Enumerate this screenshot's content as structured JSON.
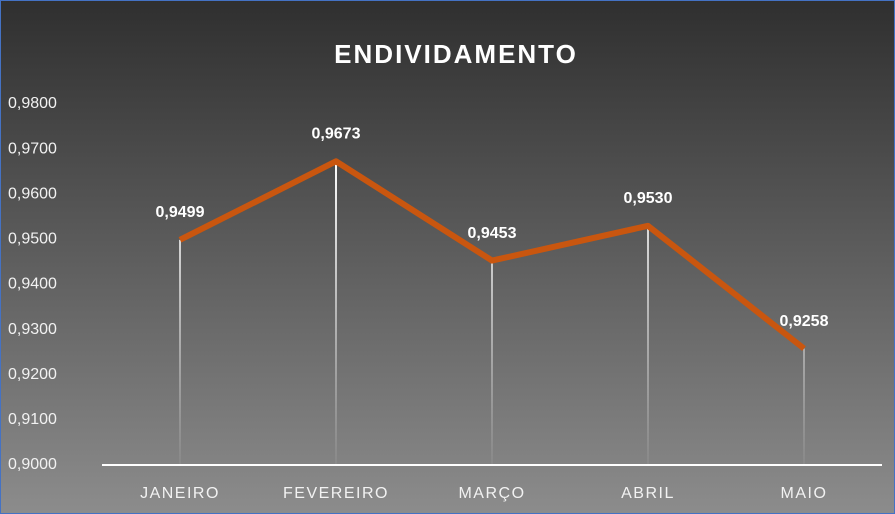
{
  "chart_data": {
    "type": "line",
    "title": "ENDIVIDAMENTO",
    "categories": [
      "JANEIRO",
      "FEVEREIRO",
      "MARÇO",
      "ABRIL",
      "MAIO"
    ],
    "series": [
      {
        "name": "Endividamento",
        "color": "#c9560f",
        "values": [
          0.9499,
          0.9673,
          0.9453,
          0.953,
          0.9258
        ],
        "value_labels": [
          "0,9499",
          "0,9673",
          "0,9453",
          "0,9530",
          "0,9258"
        ]
      }
    ],
    "ylim": [
      0.9,
      0.98
    ],
    "yticks": [
      {
        "value": 0.9,
        "label": "0,9000"
      },
      {
        "value": 0.91,
        "label": "0,9100"
      },
      {
        "value": 0.92,
        "label": "0,9200"
      },
      {
        "value": 0.93,
        "label": "0,9300"
      },
      {
        "value": 0.94,
        "label": "0,9400"
      },
      {
        "value": 0.95,
        "label": "0,9500"
      },
      {
        "value": 0.96,
        "label": "0,9600"
      },
      {
        "value": 0.97,
        "label": "0,9700"
      },
      {
        "value": 0.98,
        "label": "0,9800"
      }
    ],
    "drop_lines": true,
    "grid": false
  }
}
